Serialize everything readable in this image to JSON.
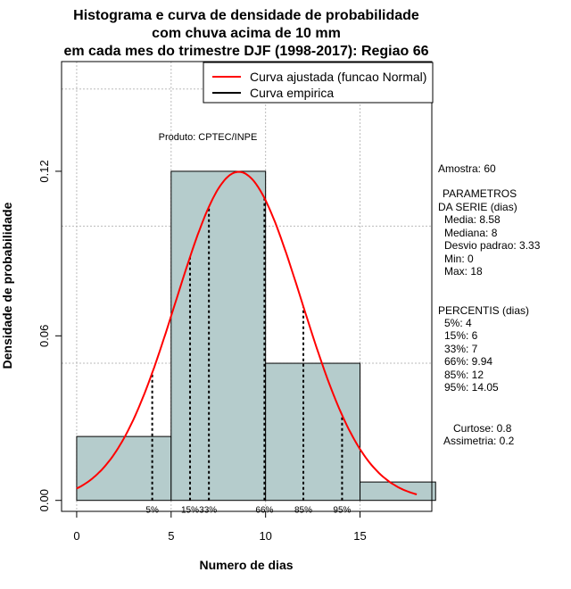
{
  "chart_data": {
    "type": "bar",
    "title": [
      "Histograma e curva de densidade de probabilidade",
      "com chuva acima de 10 mm",
      "em cada mes do trimestre DJF (1998-2017): Regiao 66"
    ],
    "xlabel": "Numero de dias",
    "ylabel": "Densidade de probabilidade",
    "xlim": [
      -0.8,
      18.8
    ],
    "ylim": [
      -0.004,
      0.16
    ],
    "x_ticks": [
      0,
      5,
      10,
      15
    ],
    "y_ticks": [
      0.0,
      0.06,
      0.12
    ],
    "y_tick_labels": [
      "0.00",
      "0.06",
      "0.12"
    ],
    "grid": true,
    "histogram": {
      "bins": [
        [
          0,
          5
        ],
        [
          5,
          10
        ],
        [
          10,
          15
        ],
        [
          15,
          19
        ]
      ],
      "density": [
        0.0233,
        0.12,
        0.05,
        0.0067
      ],
      "fill": "#b5cccc"
    },
    "series": [
      {
        "name": "Curva ajustada (funcao Normal)",
        "color": "#ff0000",
        "distribution": "normal",
        "mean": 8.58,
        "sd": 3.33,
        "x_range": [
          0,
          18
        ]
      },
      {
        "name": "Curva empirica",
        "color": "#000000"
      }
    ],
    "percentile_lines": [
      {
        "label": "5%",
        "x": 4
      },
      {
        "label": "15%",
        "x": 6
      },
      {
        "label": "33%",
        "x": 7
      },
      {
        "label": "66%",
        "x": 9.94
      },
      {
        "label": "85%",
        "x": 12
      },
      {
        "label": "95%",
        "x": 14.05
      }
    ],
    "legend_placement": "top-right",
    "annotation": "Produto: CPTEC/INPE"
  },
  "stats": {
    "amostra": "Amostra: 60",
    "param_header1": "PARAMETROS",
    "param_header2": "DA SERIE (dias)",
    "media": "Media: 8.58",
    "mediana": "Mediana: 8",
    "desvio": "Desvio padrao: 3.33",
    "min": "Min: 0",
    "max": "Max: 18",
    "percentis_header": "PERCENTIS (dias)",
    "p5": "5%: 4",
    "p15": "15%: 6",
    "p33": "33%: 7",
    "p66": "66%: 9.94",
    "p85": "85%: 12",
    "p95": "95%: 14.05",
    "curtose": "Curtose: 0.8",
    "assimetria": "Assimetria: 0.2"
  }
}
